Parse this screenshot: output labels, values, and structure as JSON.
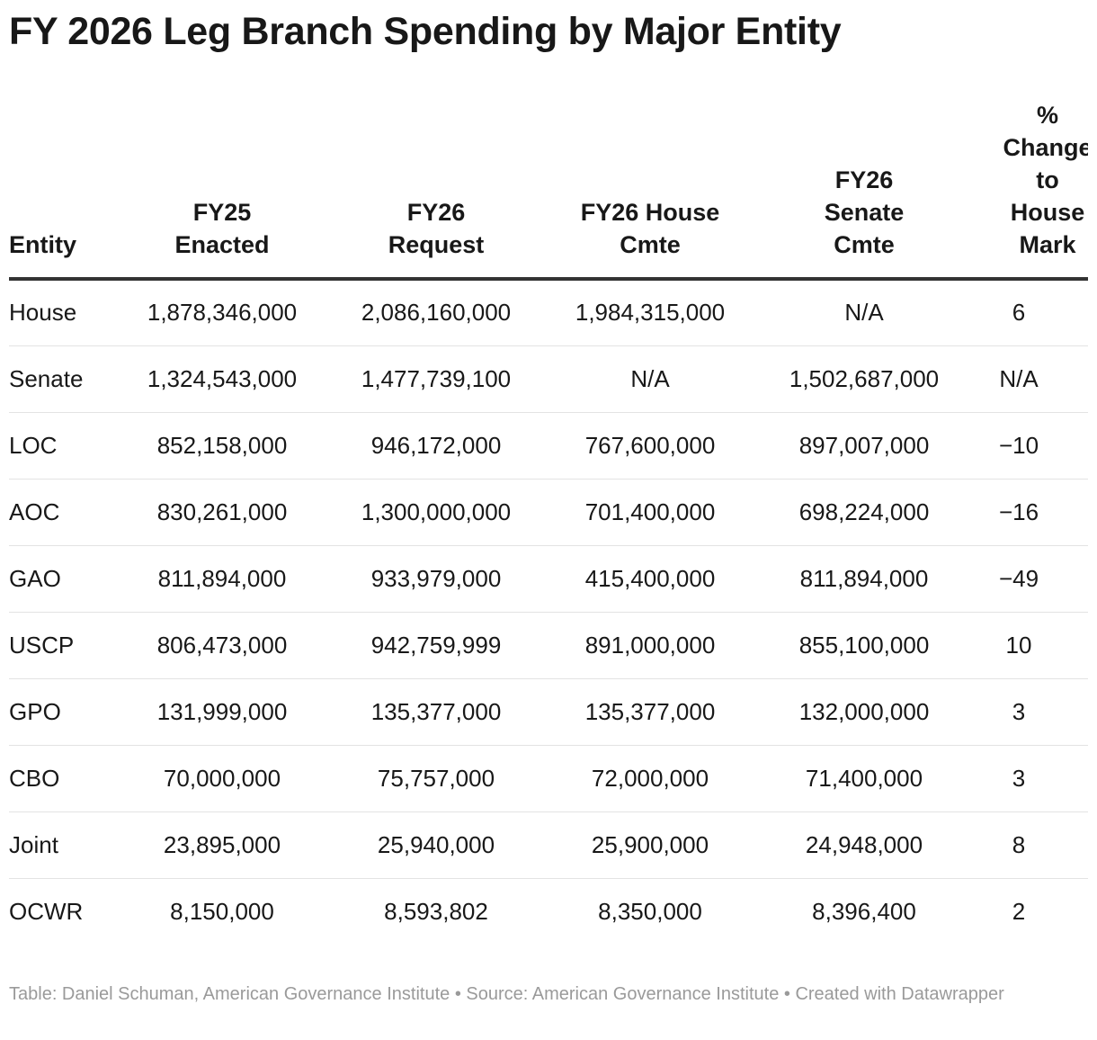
{
  "title": "FY 2026 Leg Branch Spending by Major Entity",
  "chart_data": {
    "type": "table",
    "title": "FY 2026 Leg Branch Spending by Major Entity",
    "columns": [
      "Entity",
      "FY25 Enacted",
      "FY26 Request",
      "FY26 House Cmte",
      "FY26 Senate Cmte",
      "% Change to House Mark"
    ],
    "header_lines": [
      [
        "Entity"
      ],
      [
        "FY25",
        "Enacted"
      ],
      [
        "FY26",
        "Request"
      ],
      [
        "FY26 House",
        "Cmte"
      ],
      [
        "FY26",
        "Senate",
        "Cmte"
      ],
      [
        "%",
        "Change",
        "to",
        "House",
        "Mark"
      ]
    ],
    "rows": [
      [
        "House",
        "1,878,346,000",
        "2,086,160,000",
        "1,984,315,000",
        "N/A",
        "6"
      ],
      [
        "Senate",
        "1,324,543,000",
        "1,477,739,100",
        "N/A",
        "1,502,687,000",
        "N/A"
      ],
      [
        "LOC",
        "852,158,000",
        "946,172,000",
        "767,600,000",
        "897,007,000",
        "−10"
      ],
      [
        "AOC",
        "830,261,000",
        "1,300,000,000",
        "701,400,000",
        "698,224,000",
        "−16"
      ],
      [
        "GAO",
        "811,894,000",
        "933,979,000",
        "415,400,000",
        "811,894,000",
        "−49"
      ],
      [
        "USCP",
        "806,473,000",
        "942,759,999",
        "891,000,000",
        "855,100,000",
        "10"
      ],
      [
        "GPO",
        "131,999,000",
        "135,377,000",
        "135,377,000",
        "132,000,000",
        "3"
      ],
      [
        "CBO",
        "70,000,000",
        "75,757,000",
        "72,000,000",
        "71,400,000",
        "3"
      ],
      [
        "Joint",
        "23,895,000",
        "25,940,000",
        "25,900,000",
        "24,948,000",
        "8"
      ],
      [
        "OCWR",
        "8,150,000",
        "8,593,802",
        "8,350,000",
        "8,396,400",
        "2"
      ]
    ]
  },
  "footer": "Table: Daniel Schuman, American Governance Institute • Source: American Governance Institute • Created with Datawrapper"
}
